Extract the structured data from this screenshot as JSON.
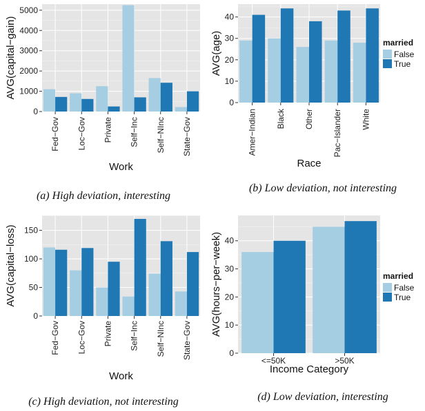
{
  "colors": {
    "False": "#a6cee3",
    "True": "#1f78b4",
    "panel": "#e5e5e5"
  },
  "chart_data": [
    {
      "id": "a",
      "type": "bar",
      "caption": "(a) High deviation, interesting",
      "xlabel": "Work",
      "ylabel": "AVG(capital−gain)",
      "categories": [
        "Fed−Gov",
        "Loc−Gov",
        "Private",
        "Self−Inc",
        "Self−NInc",
        "State−Gov"
      ],
      "series": [
        {
          "name": "False",
          "values": [
            1100,
            900,
            1250,
            5250,
            1650,
            220
          ]
        },
        {
          "name": "True",
          "values": [
            720,
            620,
            250,
            700,
            1420,
            1000
          ]
        }
      ],
      "ylim": [
        0,
        5300
      ],
      "yticks": [
        0,
        1000,
        2000,
        3000,
        4000,
        5000
      ],
      "legend": null
    },
    {
      "id": "b",
      "type": "bar",
      "caption": "(b) Low deviation, not interesting",
      "xlabel": "Race",
      "ylabel": "AVG(age)",
      "categories": [
        "Amer−Indian",
        "Black",
        "Other",
        "Pac−Islander",
        "White"
      ],
      "series": [
        {
          "name": "False",
          "values": [
            29,
            30,
            26,
            29,
            28
          ]
        },
        {
          "name": "True",
          "values": [
            41,
            44,
            38,
            43,
            44
          ]
        }
      ],
      "ylim": [
        0,
        46
      ],
      "yticks": [
        0,
        10,
        20,
        30,
        40
      ],
      "legend": {
        "title": "married",
        "placement": "right"
      }
    },
    {
      "id": "c",
      "type": "bar",
      "caption": "(c) High deviation, not interesting",
      "xlabel": "Work",
      "ylabel": "AVG(capital−loss)",
      "categories": [
        "Fed−Gov",
        "Loc−Gov",
        "Private",
        "Self−Inc",
        "Self−NInc",
        "State−Gov"
      ],
      "series": [
        {
          "name": "False",
          "values": [
            120,
            80,
            50,
            34,
            74,
            43
          ]
        },
        {
          "name": "True",
          "values": [
            116,
            119,
            95,
            170,
            131,
            112
          ]
        }
      ],
      "ylim": [
        0,
        176
      ],
      "yticks": [
        0,
        50,
        100,
        150
      ],
      "legend": null
    },
    {
      "id": "d",
      "type": "bar",
      "caption": "(d) Low deviation, interesting",
      "xlabel": "Income Category",
      "ylabel": "AVG(hours−per−week)",
      "categories": [
        "<=50K",
        ">50K"
      ],
      "series": [
        {
          "name": "False",
          "values": [
            36,
            45
          ]
        },
        {
          "name": "True",
          "values": [
            40,
            47
          ]
        }
      ],
      "ylim": [
        0,
        49
      ],
      "yticks": [
        0,
        10,
        20,
        30,
        40
      ],
      "legend": {
        "title": "married",
        "placement": "right"
      }
    }
  ]
}
